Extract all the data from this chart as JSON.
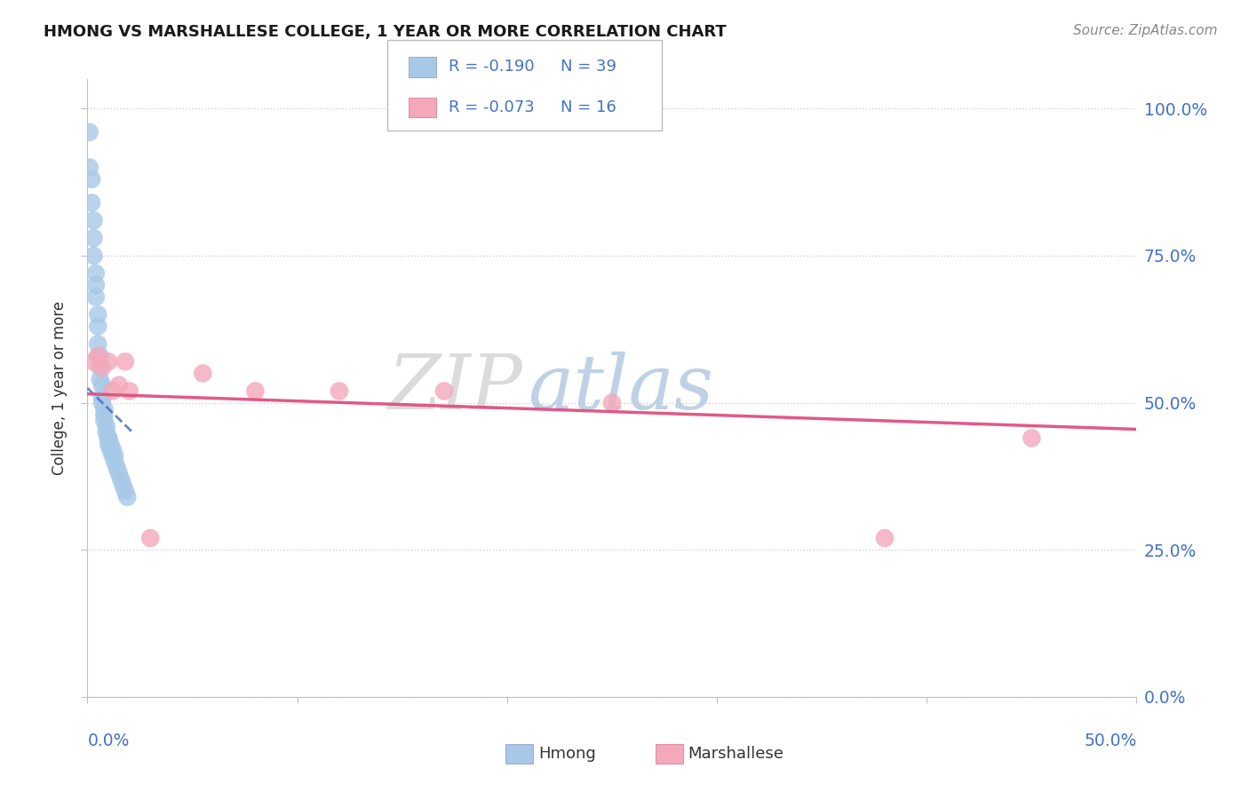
{
  "title": "HMONG VS MARSHALLESE COLLEGE, 1 YEAR OR MORE CORRELATION CHART",
  "source": "Source: ZipAtlas.com",
  "ylabel": "College, 1 year or more",
  "watermark_zip": "ZIP",
  "watermark_atlas": "atlas",
  "xlim": [
    0.0,
    0.5
  ],
  "ylim": [
    0.0,
    1.05
  ],
  "y_ticks": [
    0.0,
    0.25,
    0.5,
    0.75,
    1.0
  ],
  "y_tick_labels": [
    "0.0%",
    "25.0%",
    "50.0%",
    "75.0%",
    "100.0%"
  ],
  "x_tick_labels_bottom": [
    "0.0%",
    "50.0%"
  ],
  "hmong_scatter_x": [
    0.001,
    0.001,
    0.002,
    0.002,
    0.003,
    0.003,
    0.003,
    0.004,
    0.004,
    0.004,
    0.005,
    0.005,
    0.005,
    0.006,
    0.006,
    0.006,
    0.007,
    0.007,
    0.007,
    0.008,
    0.008,
    0.008,
    0.009,
    0.009,
    0.01,
    0.01,
    0.01,
    0.011,
    0.011,
    0.012,
    0.012,
    0.013,
    0.013,
    0.014,
    0.015,
    0.016,
    0.017,
    0.018,
    0.019
  ],
  "hmong_scatter_y": [
    0.96,
    0.9,
    0.88,
    0.84,
    0.81,
    0.78,
    0.75,
    0.72,
    0.7,
    0.68,
    0.65,
    0.63,
    0.6,
    0.58,
    0.56,
    0.54,
    0.53,
    0.51,
    0.5,
    0.49,
    0.48,
    0.47,
    0.46,
    0.45,
    0.44,
    0.44,
    0.43,
    0.43,
    0.42,
    0.42,
    0.41,
    0.41,
    0.4,
    0.39,
    0.38,
    0.37,
    0.36,
    0.35,
    0.34
  ],
  "marshallese_scatter_x": [
    0.003,
    0.005,
    0.007,
    0.01,
    0.012,
    0.015,
    0.018,
    0.02,
    0.03,
    0.055,
    0.08,
    0.12,
    0.17,
    0.25,
    0.38,
    0.45
  ],
  "marshallese_scatter_y": [
    0.57,
    0.58,
    0.56,
    0.57,
    0.52,
    0.53,
    0.57,
    0.52,
    0.27,
    0.55,
    0.52,
    0.52,
    0.52,
    0.5,
    0.27,
    0.44
  ],
  "hmong_trend_x0": 0.0,
  "hmong_trend_y0": 0.525,
  "hmong_trend_x1": 0.02,
  "hmong_trend_y1": 0.455,
  "hmong_trend_extend_x": 0.022,
  "marshallese_trend_x0": 0.0,
  "marshallese_trend_y0": 0.515,
  "marshallese_trend_x1": 0.5,
  "marshallese_trend_y1": 0.455,
  "hmong_color": "#a8c8e8",
  "hmong_line_color": "#4472c4",
  "marshallese_color": "#f4a8ba",
  "marshallese_line_color": "#e05080",
  "scatter_size": 220,
  "tick_color": "#4472c4",
  "title_color": "#1a1a1a",
  "grid_color": "#d0d0d0",
  "legend_R_color": "#4472c4",
  "legend_N_color": "#4472c4",
  "hmong_R": "R = -0.190",
  "hmong_N": "N = 39",
  "marshallese_R": "R = -0.073",
  "marshallese_N": "N = 16",
  "bottom_legend_hmong": "Hmong",
  "bottom_legend_marshallese": "Marshallese"
}
